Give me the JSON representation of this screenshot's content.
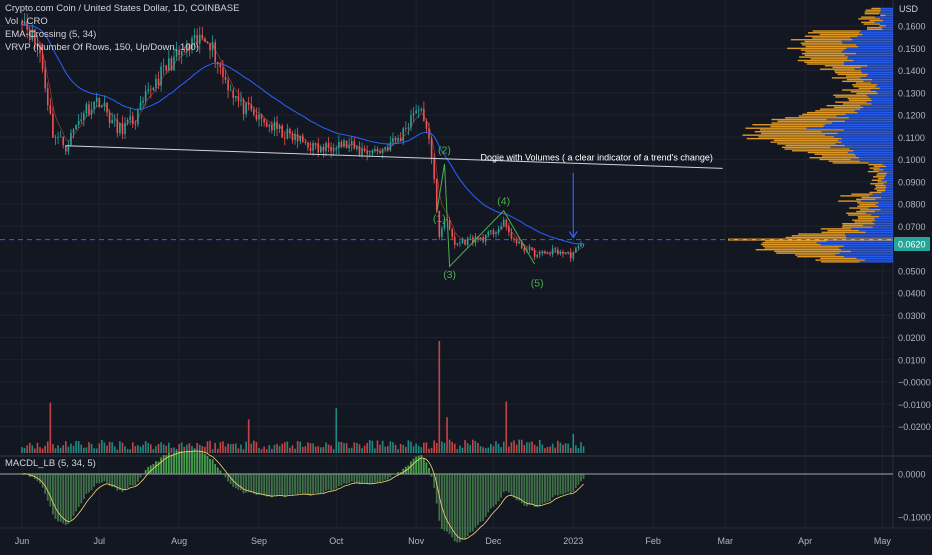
{
  "header": {
    "symbol_title": "Crypto.com Coin / United States Dollar, 1D, COINBASE",
    "indicator_vol": "Vol · CRO",
    "indicator_ema": "EMA-Crossing (5, 34)",
    "indicator_vrvp": "VRVP (Number Of Rows, 150, Up/Down, 100)",
    "indicator_macd": "MACDL_LB (5, 34, 5)",
    "currency": "USD"
  },
  "colors": {
    "background": "#131722",
    "up": "#26a69a",
    "down": "#ef5350",
    "ema": "#2962ff",
    "annotation": "#4caf50",
    "profile_up": "#2962ff",
    "profile_down": "#f5a623",
    "price_badge": "#26a69a",
    "neckline": "#d1d4dc"
  },
  "chart_data": [
    {
      "type": "candlestick",
      "title": "Crypto.com Coin / United States Dollar, 1D, COINBASE",
      "x_ticks": [
        "Jun",
        "Jul",
        "Aug",
        "Sep",
        "Oct",
        "Nov",
        "Dec",
        "2023",
        "Feb",
        "Mar",
        "Apr",
        "May"
      ],
      "y_ticks": [
        "0.1600",
        "0.1500",
        "0.1400",
        "0.1300",
        "0.1200",
        "0.1100",
        "0.1000",
        "0.0900",
        "0.0800",
        "0.0700",
        "0.0620",
        "0.0500",
        "0.0400",
        "0.0300",
        "0.0200",
        "0.0100",
        "−0.0000",
        "−0.0100",
        "−0.0200"
      ],
      "ylim": [
        -0.024,
        0.166
      ],
      "last_price": "0.0620",
      "last_price_value": 0.062,
      "series_close_estimate": [
        {
          "date": "2022-06-01",
          "value": 0.165
        },
        {
          "date": "2022-06-08",
          "value": 0.148
        },
        {
          "date": "2022-06-13",
          "value": 0.112
        },
        {
          "date": "2022-06-18",
          "value": 0.106
        },
        {
          "date": "2022-06-25",
          "value": 0.122
        },
        {
          "date": "2022-07-01",
          "value": 0.127
        },
        {
          "date": "2022-07-08",
          "value": 0.113
        },
        {
          "date": "2022-07-15",
          "value": 0.118
        },
        {
          "date": "2022-07-22",
          "value": 0.134
        },
        {
          "date": "2022-07-29",
          "value": 0.144
        },
        {
          "date": "2022-08-05",
          "value": 0.15
        },
        {
          "date": "2022-08-12",
          "value": 0.156
        },
        {
          "date": "2022-08-18",
          "value": 0.138
        },
        {
          "date": "2022-08-25",
          "value": 0.124
        },
        {
          "date": "2022-09-01",
          "value": 0.118
        },
        {
          "date": "2022-09-10",
          "value": 0.112
        },
        {
          "date": "2022-09-18",
          "value": 0.108
        },
        {
          "date": "2022-09-25",
          "value": 0.104
        },
        {
          "date": "2022-10-01",
          "value": 0.108
        },
        {
          "date": "2022-10-10",
          "value": 0.104
        },
        {
          "date": "2022-10-18",
          "value": 0.104
        },
        {
          "date": "2022-10-26",
          "value": 0.11
        },
        {
          "date": "2022-11-01",
          "value": 0.124
        },
        {
          "date": "2022-11-05",
          "value": 0.116
        },
        {
          "date": "2022-11-08",
          "value": 0.09
        },
        {
          "date": "2022-11-10",
          "value": 0.066
        },
        {
          "date": "2022-11-12",
          "value": 0.074
        },
        {
          "date": "2022-11-16",
          "value": 0.062
        },
        {
          "date": "2022-11-22",
          "value": 0.064
        },
        {
          "date": "2022-11-28",
          "value": 0.065
        },
        {
          "date": "2022-12-05",
          "value": 0.071
        },
        {
          "date": "2022-12-10",
          "value": 0.062
        },
        {
          "date": "2022-12-18",
          "value": 0.057
        },
        {
          "date": "2022-12-25",
          "value": 0.059
        },
        {
          "date": "2022-12-31",
          "value": 0.057
        },
        {
          "date": "2023-01-05",
          "value": 0.062
        }
      ],
      "neckline": {
        "from": {
          "date": "2022-06-18",
          "value": 0.1062
        },
        "to": {
          "date": "2023-02-28",
          "value": 0.096
        }
      },
      "annotations": [
        {
          "label": "(1)",
          "date": "2022-11-10",
          "value": 0.0718
        },
        {
          "label": "(2)",
          "date": "2022-11-12",
          "value": 0.1028
        },
        {
          "label": "(3)",
          "date": "2022-11-14",
          "value": 0.0468
        },
        {
          "label": "(4)",
          "date": "2022-12-05",
          "value": 0.0798
        },
        {
          "label": "(5)",
          "date": "2022-12-18",
          "value": 0.043
        },
        {
          "label": "Dogie with Volumes ( a clear indicator of a trend's change)",
          "date": "2022-11-26",
          "value": 0.0995
        }
      ],
      "arrow": {
        "date": "2023-01-01",
        "from_value": 0.094,
        "to_value": 0.065
      }
    },
    {
      "type": "bar",
      "name": "Vol · CRO",
      "description_values": [
        {
          "date": "2022-06-12",
          "value_relative": 0.45
        },
        {
          "date": "2022-08-28",
          "value_relative": 0.3
        },
        {
          "date": "2022-10-01",
          "value_relative": 0.4
        },
        {
          "date": "2022-11-10",
          "value_relative": 1.0
        },
        {
          "date": "2022-11-13",
          "value_relative": 0.32
        },
        {
          "date": "2022-12-06",
          "value_relative": 0.46
        },
        {
          "date": "2023-01-01",
          "value_relative": 0.17
        }
      ]
    },
    {
      "type": "area",
      "name": "MACDL_LB (5, 34, 5)",
      "y_ticks": [
        "0.0000",
        "−0.1000"
      ],
      "ylim": [
        -0.12,
        0.05
      ]
    },
    {
      "type": "bar",
      "name": "VRVP (Number Of Rows, 150, Up/Down, 100)",
      "orientation": "horizontal",
      "poc_value": 0.064
    }
  ]
}
